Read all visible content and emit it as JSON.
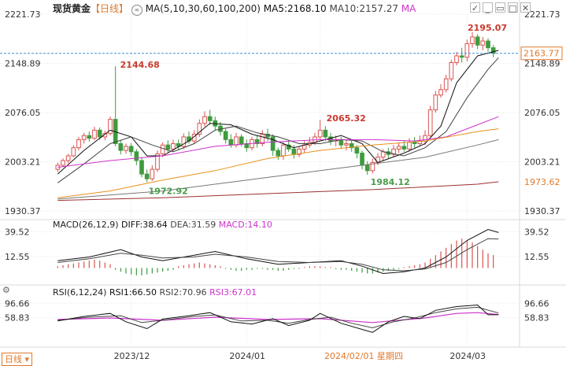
{
  "header": {
    "symbol": "现货黄金",
    "period_tag": "【日线】",
    "ma_params": "MA(5,10,30,60,100,200)",
    "ma5": "MA5:2168.10",
    "ma10": "MA10:2157.27",
    "ma_extra": "MA"
  },
  "toolbar": {
    "icons": [
      "checkbox-icon",
      "minimize-icon",
      "restore-icon",
      "maximize-icon",
      "close-icon"
    ],
    "glyphs": [
      "✓",
      "_",
      "▭",
      "□",
      "✕"
    ]
  },
  "period_button": "日线",
  "macd_header": {
    "params": "MACD(26,12,9)",
    "diff": "DIFF:38.64",
    "dea": "DEA:31.59",
    "macd": "MACD:14.10"
  },
  "rsi_header": {
    "params": "RSI(6,12,24)",
    "rsi1": "RSI1:66.50",
    "rsi2": "RSI2:70.96",
    "rsi3": "RSI3:67.01"
  },
  "price_axis": {
    "ticks": [
      "2221.73",
      "2148.89",
      "2076.05",
      "2003.21",
      "1930.37"
    ],
    "current": "2163.77",
    "ma_tag": "1973.62"
  },
  "macd_axis": {
    "ticks": [
      "39.52",
      "12.55"
    ]
  },
  "rsi_axis": {
    "ticks": [
      "96.66",
      "58.83"
    ]
  },
  "annotations": {
    "high": "2195.07",
    "a1": "2144.68",
    "a2": "2065.32",
    "low1": "1972.92",
    "low2": "1984.12"
  },
  "x_axis": {
    "labels": [
      "2023/12",
      "2024/01",
      "2024/03"
    ],
    "cursor_date": "2024/02/01 星期四"
  },
  "colors": {
    "up": "#d9534f",
    "down": "#3e9b3e",
    "ma5": "#111111",
    "ma10": "#444444",
    "ma30": "#cc33cc",
    "ma60": "#e8911b",
    "ma100": "#777777",
    "ma200": "#9b3030",
    "diff": "#111111",
    "dea": "#444444",
    "macd": "#cc33cc",
    "price_line": "#3b8fd6",
    "annot": "#c9392e",
    "low_annot": "#4a9a4a"
  },
  "chart_data": {
    "type": "candlestick",
    "title": "现货黄金【日线】",
    "price_range": [
      1930.37,
      2221.73
    ],
    "current_price": 2163.77,
    "candles": [
      [
        1992,
        1998,
        1988,
        2002
      ],
      [
        1998,
        2005,
        1995,
        2008
      ],
      [
        2005,
        2012,
        2001,
        2015
      ],
      [
        2012,
        2024,
        2010,
        2028
      ],
      [
        2024,
        2036,
        2020,
        2040
      ],
      [
        2036,
        2042,
        2030,
        2046
      ],
      [
        2042,
        2038,
        2033,
        2048
      ],
      [
        2038,
        2050,
        2035,
        2055
      ],
      [
        2050,
        2040,
        2036,
        2054
      ],
      [
        2040,
        2045,
        2035,
        2049
      ],
      [
        2045,
        2066,
        2042,
        2070
      ],
      [
        2066,
        2030,
        2026,
        2144.68
      ],
      [
        2030,
        2020,
        2014,
        2035
      ],
      [
        2020,
        2026,
        2015,
        2030
      ],
      [
        2026,
        2018,
        2012,
        2031
      ],
      [
        2018,
        2005,
        1998,
        2022
      ],
      [
        2005,
        1985,
        1980,
        2010
      ],
      [
        1985,
        1978,
        1972.92,
        1992
      ],
      [
        1978,
        1992,
        1975,
        1998
      ],
      [
        1992,
        2015,
        1988,
        2020
      ],
      [
        2015,
        2028,
        2010,
        2032
      ],
      [
        2028,
        2022,
        2016,
        2035
      ],
      [
        2022,
        2030,
        2018,
        2036
      ],
      [
        2030,
        2026,
        2020,
        2036
      ],
      [
        2026,
        2040,
        2022,
        2045
      ],
      [
        2040,
        2034,
        2030,
        2048
      ],
      [
        2034,
        2044,
        2030,
        2050
      ],
      [
        2044,
        2060,
        2040,
        2066
      ],
      [
        2060,
        2070,
        2055,
        2078
      ],
      [
        2070,
        2064,
        2058,
        2080
      ],
      [
        2064,
        2056,
        2050,
        2070
      ],
      [
        2056,
        2048,
        2042,
        2062
      ],
      [
        2048,
        2036,
        2030,
        2052
      ],
      [
        2036,
        2028,
        2024,
        2044
      ],
      [
        2028,
        2040,
        2024,
        2046
      ],
      [
        2040,
        2030,
        2026,
        2044
      ],
      [
        2030,
        2024,
        2018,
        2036
      ],
      [
        2024,
        2036,
        2020,
        2040
      ],
      [
        2036,
        2030,
        2024,
        2042
      ],
      [
        2030,
        2044,
        2026,
        2050
      ],
      [
        2044,
        2040,
        2034,
        2052
      ],
      [
        2040,
        2020,
        2012,
        2044
      ],
      [
        2020,
        2012,
        2006,
        2024
      ],
      [
        2012,
        2028,
        2006,
        2032
      ],
      [
        2028,
        2022,
        2018,
        2034
      ],
      [
        2022,
        2014,
        2008,
        2028
      ],
      [
        2014,
        2022,
        2010,
        2026
      ],
      [
        2022,
        2028,
        2016,
        2034
      ],
      [
        2028,
        2032,
        2024,
        2040
      ],
      [
        2032,
        2040,
        2028,
        2046
      ],
      [
        2040,
        2050,
        2035,
        2065.32
      ],
      [
        2050,
        2040,
        2034,
        2056
      ],
      [
        2040,
        2034,
        2028,
        2046
      ],
      [
        2034,
        2036,
        2026,
        2042
      ],
      [
        2036,
        2028,
        2022,
        2040
      ],
      [
        2028,
        2030,
        2020,
        2036
      ],
      [
        2030,
        2024,
        2018,
        2034
      ],
      [
        2024,
        2016,
        2008,
        2028
      ],
      [
        2016,
        1998,
        1992,
        2020
      ],
      [
        1998,
        1990,
        1984.12,
        2004
      ],
      [
        1990,
        2002,
        1986,
        2008
      ],
      [
        2002,
        2010,
        1998,
        2016
      ],
      [
        2010,
        2018,
        2004,
        2022
      ],
      [
        2018,
        2014,
        2008,
        2024
      ],
      [
        2014,
        2022,
        2010,
        2028
      ],
      [
        2022,
        2026,
        2016,
        2032
      ],
      [
        2026,
        2022,
        2018,
        2034
      ],
      [
        2022,
        2032,
        2018,
        2038
      ],
      [
        2032,
        2030,
        2024,
        2040
      ],
      [
        2030,
        2034,
        2026,
        2042
      ],
      [
        2034,
        2042,
        2028,
        2050
      ],
      [
        2042,
        2080,
        2040,
        2086
      ],
      [
        2080,
        2102,
        2076,
        2108
      ],
      [
        2102,
        2110,
        2098,
        2118
      ],
      [
        2110,
        2126,
        2106,
        2132
      ],
      [
        2126,
        2150,
        2122,
        2154
      ],
      [
        2150,
        2160,
        2146,
        2166
      ],
      [
        2160,
        2158,
        2150,
        2172
      ],
      [
        2158,
        2178,
        2152,
        2184
      ],
      [
        2178,
        2188,
        2172,
        2195.07
      ],
      [
        2188,
        2176,
        2170,
        2192
      ],
      [
        2176,
        2182,
        2168,
        2188
      ],
      [
        2182,
        2172,
        2166,
        2186
      ],
      [
        2172,
        2163.77,
        2158,
        2176
      ]
    ],
    "ma_lines": {
      "MA5": [
        [
          0,
          1985
        ],
        [
          5,
          2020
        ],
        [
          10,
          2050
        ],
        [
          14,
          2040
        ],
        [
          17,
          2012
        ],
        [
          20,
          2012
        ],
        [
          25,
          2034
        ],
        [
          29,
          2060
        ],
        [
          33,
          2058
        ],
        [
          37,
          2044
        ],
        [
          41,
          2036
        ],
        [
          45,
          2024
        ],
        [
          50,
          2034
        ],
        [
          54,
          2042
        ],
        [
          58,
          2030
        ],
        [
          61,
          2002
        ],
        [
          66,
          2016
        ],
        [
          70,
          2030
        ],
        [
          73,
          2056
        ],
        [
          76,
          2120
        ],
        [
          80,
          2160
        ],
        [
          84,
          2168.1
        ]
      ],
      "MA10": [
        [
          0,
          1972
        ],
        [
          5,
          2000
        ],
        [
          10,
          2030
        ],
        [
          14,
          2040
        ],
        [
          18,
          2028
        ],
        [
          22,
          2018
        ],
        [
          26,
          2030
        ],
        [
          30,
          2050
        ],
        [
          34,
          2056
        ],
        [
          38,
          2046
        ],
        [
          42,
          2040
        ],
        [
          46,
          2030
        ],
        [
          50,
          2030
        ],
        [
          54,
          2036
        ],
        [
          58,
          2034
        ],
        [
          62,
          2018
        ],
        [
          66,
          2012
        ],
        [
          70,
          2024
        ],
        [
          74,
          2048
        ],
        [
          78,
          2098
        ],
        [
          82,
          2140
        ],
        [
          84,
          2157.27
        ]
      ],
      "MA30": [
        [
          0,
          1995
        ],
        [
          10,
          2005
        ],
        [
          20,
          2012
        ],
        [
          30,
          2026
        ],
        [
          40,
          2032
        ],
        [
          50,
          2036
        ],
        [
          60,
          2036
        ],
        [
          68,
          2034
        ],
        [
          74,
          2040
        ],
        [
          80,
          2058
        ],
        [
          84,
          2070
        ]
      ],
      "MA60": [
        [
          0,
          1950
        ],
        [
          10,
          1960
        ],
        [
          20,
          1976
        ],
        [
          30,
          1990
        ],
        [
          40,
          2008
        ],
        [
          50,
          2020
        ],
        [
          60,
          2028
        ],
        [
          70,
          2034
        ],
        [
          80,
          2048
        ],
        [
          84,
          2052
        ]
      ],
      "MA100": [
        [
          0,
          1948
        ],
        [
          10,
          1954
        ],
        [
          20,
          1960
        ],
        [
          30,
          1970
        ],
        [
          40,
          1980
        ],
        [
          50,
          1990
        ],
        [
          60,
          2000
        ],
        [
          70,
          2010
        ],
        [
          80,
          2028
        ],
        [
          84,
          2036
        ]
      ],
      "MA200": [
        [
          0,
          1946
        ],
        [
          20,
          1950
        ],
        [
          40,
          1956
        ],
        [
          60,
          1962
        ],
        [
          80,
          1970
        ],
        [
          84,
          1973.62
        ]
      ]
    },
    "macd": {
      "range": [
        -15,
        45
      ],
      "diff": [
        [
          0,
          8
        ],
        [
          6,
          12
        ],
        [
          12,
          20
        ],
        [
          16,
          12
        ],
        [
          20,
          8
        ],
        [
          26,
          14
        ],
        [
          30,
          18
        ],
        [
          36,
          10
        ],
        [
          42,
          4
        ],
        [
          48,
          6
        ],
        [
          54,
          8
        ],
        [
          58,
          2
        ],
        [
          62,
          -6
        ],
        [
          66,
          -4
        ],
        [
          70,
          0
        ],
        [
          74,
          12
        ],
        [
          78,
          30
        ],
        [
          82,
          42
        ],
        [
          84,
          38.64
        ]
      ],
      "dea": [
        [
          0,
          6
        ],
        [
          6,
          10
        ],
        [
          12,
          16
        ],
        [
          16,
          14
        ],
        [
          20,
          11
        ],
        [
          26,
          12
        ],
        [
          30,
          15
        ],
        [
          36,
          12
        ],
        [
          42,
          7
        ],
        [
          48,
          6
        ],
        [
          54,
          7
        ],
        [
          58,
          4
        ],
        [
          62,
          -2
        ],
        [
          66,
          -3
        ],
        [
          70,
          -1
        ],
        [
          74,
          6
        ],
        [
          78,
          20
        ],
        [
          82,
          32
        ],
        [
          84,
          31.59
        ]
      ],
      "hist": [
        2,
        3,
        4,
        5,
        6,
        7,
        8,
        9,
        8,
        6,
        4,
        -2,
        -4,
        -6,
        -7,
        -8,
        -8,
        -7,
        -6,
        -5,
        -4,
        -3,
        -2,
        2,
        3,
        4,
        5,
        6,
        5,
        4,
        3,
        2,
        -1,
        -2,
        -3,
        -3,
        -2,
        -2,
        -1,
        -1,
        -2,
        -2,
        -3,
        -3,
        -2,
        -1,
        -1,
        1,
        2,
        2,
        2,
        1,
        1,
        -1,
        -2,
        -2,
        -3,
        -4,
        -5,
        -6,
        -6,
        -5,
        -4,
        -3,
        -2,
        -1,
        1,
        2,
        3,
        4,
        6,
        10,
        14,
        18,
        22,
        26,
        30,
        32,
        30,
        28,
        24,
        20,
        16,
        14.1
      ]
    },
    "rsi": {
      "range": [
        0,
        120
      ],
      "rsi1": [
        [
          0,
          50
        ],
        [
          5,
          62
        ],
        [
          10,
          70
        ],
        [
          13,
          48
        ],
        [
          17,
          30
        ],
        [
          20,
          55
        ],
        [
          25,
          64
        ],
        [
          29,
          72
        ],
        [
          33,
          48
        ],
        [
          37,
          42
        ],
        [
          41,
          56
        ],
        [
          44,
          38
        ],
        [
          48,
          52
        ],
        [
          50,
          70
        ],
        [
          54,
          44
        ],
        [
          58,
          28
        ],
        [
          60,
          20
        ],
        [
          63,
          48
        ],
        [
          66,
          62
        ],
        [
          69,
          56
        ],
        [
          72,
          78
        ],
        [
          76,
          88
        ],
        [
          80,
          92
        ],
        [
          82,
          66.5
        ],
        [
          84,
          66.5
        ]
      ],
      "rsi2": [
        [
          0,
          52
        ],
        [
          6,
          60
        ],
        [
          12,
          64
        ],
        [
          16,
          46
        ],
        [
          20,
          52
        ],
        [
          26,
          62
        ],
        [
          30,
          66
        ],
        [
          35,
          50
        ],
        [
          40,
          52
        ],
        [
          44,
          44
        ],
        [
          48,
          54
        ],
        [
          52,
          60
        ],
        [
          56,
          44
        ],
        [
          60,
          32
        ],
        [
          64,
          48
        ],
        [
          68,
          58
        ],
        [
          72,
          72
        ],
        [
          76,
          82
        ],
        [
          80,
          86
        ],
        [
          84,
          70.96
        ]
      ],
      "rsi3": [
        [
          0,
          54
        ],
        [
          10,
          58
        ],
        [
          20,
          52
        ],
        [
          30,
          60
        ],
        [
          40,
          54
        ],
        [
          50,
          56
        ],
        [
          60,
          46
        ],
        [
          70,
          58
        ],
        [
          76,
          70
        ],
        [
          80,
          72
        ],
        [
          84,
          67.01
        ]
      ]
    }
  }
}
